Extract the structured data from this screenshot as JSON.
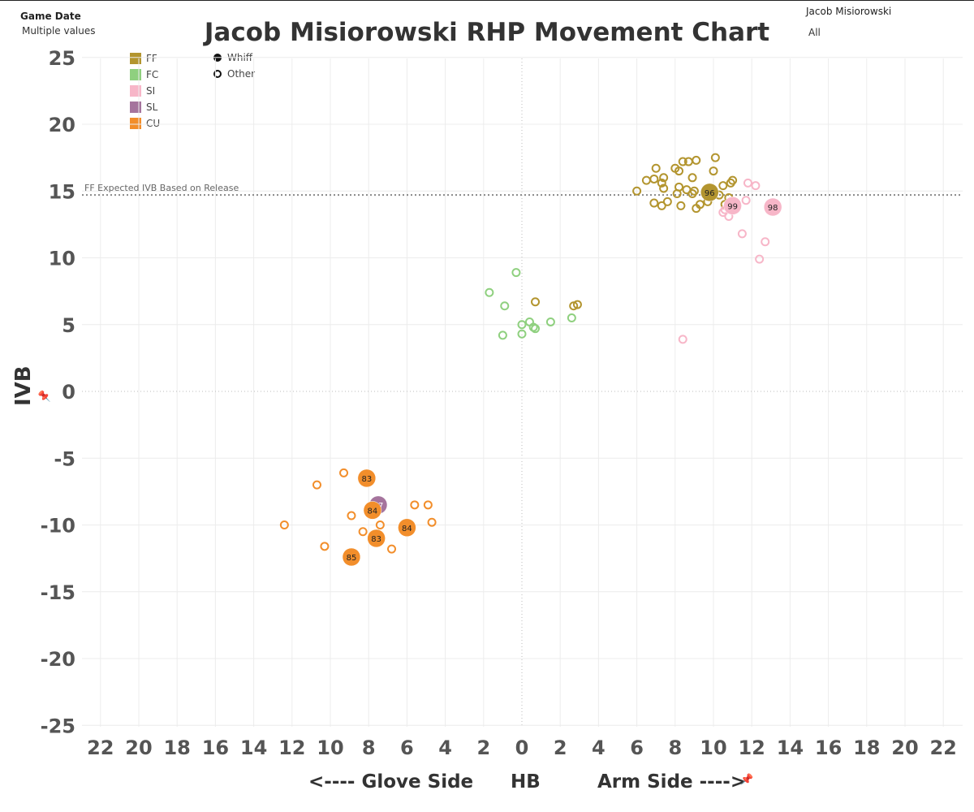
{
  "filters": {
    "game_date_label": "Game Date",
    "game_date_value": "Multiple values",
    "pitcher_label": "Jacob Misiorowski",
    "pitcher_value": "All"
  },
  "title": "Jacob Misiorowski RHP Movement Chart",
  "legend": {
    "pitch_types": [
      {
        "label": "FF",
        "color": "#b3952f"
      },
      {
        "label": "FC",
        "color": "#8fd07f"
      },
      {
        "label": "SI",
        "color": "#f7b6c8"
      },
      {
        "label": "SL",
        "color": "#a5749d"
      },
      {
        "label": "CU",
        "color": "#f28e2b"
      }
    ],
    "shapes": [
      {
        "label": "Whiff",
        "filled": true
      },
      {
        "label": "Other",
        "filled": false
      }
    ]
  },
  "pin_icon": "pin-icon",
  "chart_data": {
    "type": "scatter",
    "title": "Jacob Misiorowski RHP Movement Chart",
    "xlabel": "<---- Glove Side          HB          Arm Side ---->",
    "xlabel_parts": [
      "<---- Glove Side",
      "HB",
      "Arm Side ---->"
    ],
    "ylabel": "IVB",
    "xlim": [
      -23,
      23
    ],
    "ylim": [
      -27,
      27
    ],
    "xticks": [
      -22,
      -20,
      -18,
      -16,
      -14,
      -12,
      -10,
      -8,
      -6,
      -4,
      -2,
      0,
      2,
      4,
      6,
      8,
      10,
      12,
      14,
      16,
      18,
      20,
      22
    ],
    "xtick_labels": [
      "22",
      "20",
      "18",
      "16",
      "14",
      "12",
      "10",
      "8",
      "6",
      "4",
      "2",
      "0",
      "2",
      "4",
      "6",
      "8",
      "10",
      "12",
      "14",
      "16",
      "18",
      "20",
      "22"
    ],
    "yticks": [
      25,
      20,
      15,
      10,
      5,
      0,
      -5,
      -10,
      -15,
      -20,
      -25
    ],
    "ytick_labels": [
      "25",
      "20",
      "15",
      "10",
      "5",
      "0",
      "-5",
      "-10",
      "-15",
      "-20",
      "-25"
    ],
    "grid": true,
    "reference_line": {
      "label": "FF Expected IVB Based on Release",
      "y": 14.7
    },
    "series": [
      {
        "name": "FF",
        "color": "#b3952f",
        "points": [
          [
            6.0,
            15.0,
            false
          ],
          [
            6.5,
            15.8,
            false
          ],
          [
            7.0,
            16.7,
            false
          ],
          [
            6.9,
            15.9,
            false
          ],
          [
            7.4,
            16.0,
            false
          ],
          [
            7.3,
            15.6,
            false
          ],
          [
            7.4,
            15.2,
            false
          ],
          [
            6.9,
            14.1,
            false
          ],
          [
            7.3,
            13.9,
            false
          ],
          [
            7.6,
            14.2,
            false
          ],
          [
            8.0,
            16.7,
            false
          ],
          [
            8.2,
            16.5,
            false
          ],
          [
            8.4,
            17.2,
            false
          ],
          [
            8.7,
            17.2,
            false
          ],
          [
            9.1,
            17.3,
            false
          ],
          [
            8.9,
            16.0,
            false
          ],
          [
            8.1,
            14.8,
            false
          ],
          [
            8.2,
            15.3,
            false
          ],
          [
            8.6,
            15.1,
            false
          ],
          [
            8.9,
            14.8,
            false
          ],
          [
            9.0,
            15.0,
            false
          ],
          [
            8.3,
            13.9,
            false
          ],
          [
            9.3,
            14.0,
            false
          ],
          [
            9.1,
            13.7,
            false
          ],
          [
            9.7,
            14.2,
            false
          ],
          [
            10.1,
            17.5,
            false
          ],
          [
            10.0,
            16.5,
            false
          ],
          [
            10.5,
            15.4,
            false
          ],
          [
            10.9,
            15.6,
            false
          ],
          [
            11.0,
            15.8,
            false
          ],
          [
            10.8,
            14.5,
            false
          ],
          [
            10.3,
            14.7,
            false
          ],
          [
            10.6,
            14.0,
            false
          ],
          [
            10.8,
            14.0,
            false
          ],
          [
            0.7,
            6.7,
            false
          ],
          [
            2.7,
            6.4,
            false
          ],
          [
            2.9,
            6.5,
            false
          ],
          [
            9.8,
            14.9,
            true,
            "96"
          ]
        ]
      },
      {
        "name": "FC",
        "color": "#8fd07f",
        "points": [
          [
            -1.7,
            7.4,
            false
          ],
          [
            -0.9,
            6.4,
            false
          ],
          [
            -0.3,
            8.9,
            false
          ],
          [
            -1.0,
            4.2,
            false
          ],
          [
            0.0,
            4.3,
            false
          ],
          [
            0.0,
            5.0,
            false
          ],
          [
            0.4,
            5.2,
            false
          ],
          [
            0.6,
            4.8,
            false
          ],
          [
            0.7,
            4.7,
            false
          ],
          [
            1.5,
            5.2,
            false
          ],
          [
            2.6,
            5.5,
            false
          ]
        ]
      },
      {
        "name": "SI",
        "color": "#f7b6c8",
        "points": [
          [
            11.8,
            15.6,
            false
          ],
          [
            12.2,
            15.4,
            false
          ],
          [
            11.7,
            14.3,
            false
          ],
          [
            10.6,
            13.6,
            false
          ],
          [
            10.8,
            13.1,
            false
          ],
          [
            10.5,
            13.4,
            false
          ],
          [
            11.5,
            11.8,
            false
          ],
          [
            12.7,
            11.2,
            false
          ],
          [
            12.4,
            9.9,
            false
          ],
          [
            8.4,
            3.9,
            false
          ],
          [
            11.0,
            13.9,
            true,
            "99"
          ],
          [
            13.1,
            13.8,
            true,
            "98"
          ]
        ]
      },
      {
        "name": "SL",
        "color": "#a5749d",
        "points": [
          [
            -7.5,
            -8.5,
            true,
            "87"
          ]
        ]
      },
      {
        "name": "CU",
        "color": "#f28e2b",
        "points": [
          [
            -9.3,
            -6.1,
            false
          ],
          [
            -10.7,
            -7.0,
            false
          ],
          [
            -12.4,
            -10.0,
            false
          ],
          [
            -8.9,
            -9.3,
            false
          ],
          [
            -8.3,
            -10.5,
            false
          ],
          [
            -7.4,
            -10.0,
            false
          ],
          [
            -10.3,
            -11.6,
            false
          ],
          [
            -6.8,
            -11.8,
            false
          ],
          [
            -5.6,
            -8.5,
            false
          ],
          [
            -4.9,
            -8.5,
            false
          ],
          [
            -4.7,
            -9.8,
            false
          ],
          [
            -8.1,
            -6.5,
            true,
            "83"
          ],
          [
            -7.8,
            -8.9,
            true,
            "84"
          ],
          [
            -7.6,
            -11.0,
            true,
            "83"
          ],
          [
            -6.0,
            -10.2,
            true,
            "84"
          ],
          [
            -8.9,
            -12.4,
            true,
            "85"
          ]
        ]
      }
    ]
  }
}
